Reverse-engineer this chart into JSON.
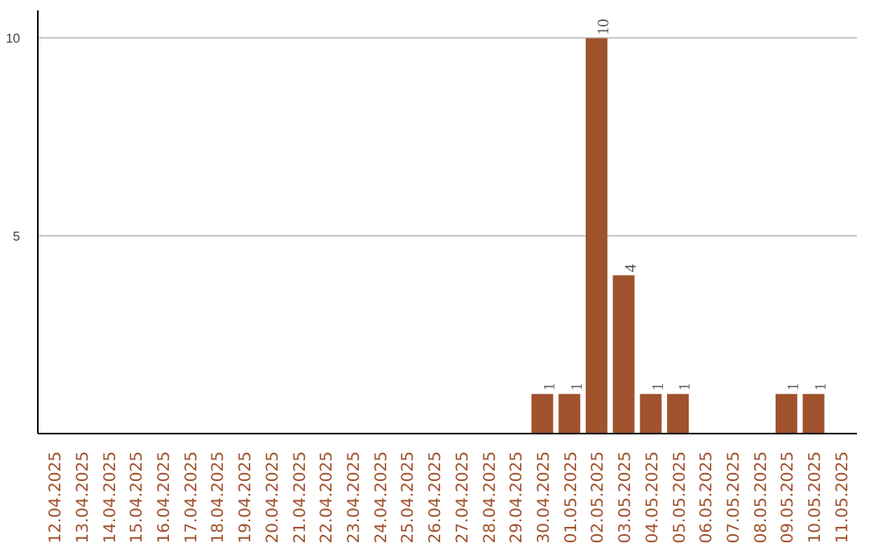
{
  "chart_data": {
    "type": "bar",
    "categories": [
      "12.04.2025",
      "13.04.2025",
      "14.04.2025",
      "15.04.2025",
      "16.04.2025",
      "17.04.2025",
      "18.04.2025",
      "19.04.2025",
      "20.04.2025",
      "21.04.2025",
      "22.04.2025",
      "23.04.2025",
      "24.04.2025",
      "25.04.2025",
      "26.04.2025",
      "27.04.2025",
      "28.04.2025",
      "29.04.2025",
      "30.04.2025",
      "01.05.2025",
      "02.05.2025",
      "03.05.2025",
      "04.05.2025",
      "05.05.2025",
      "06.05.2025",
      "07.05.2025",
      "08.05.2025",
      "09.05.2025",
      "10.05.2025",
      "11.05.2025"
    ],
    "values": [
      0,
      0,
      0,
      0,
      0,
      0,
      0,
      0,
      0,
      0,
      0,
      0,
      0,
      0,
      0,
      0,
      0,
      0,
      1,
      1,
      10,
      4,
      1,
      1,
      0,
      0,
      0,
      1,
      1,
      0
    ],
    "value_labels": [
      null,
      null,
      null,
      null,
      null,
      null,
      null,
      null,
      null,
      null,
      null,
      null,
      null,
      null,
      null,
      null,
      null,
      null,
      "1",
      "1",
      "10",
      "4",
      "1",
      "1",
      null,
      null,
      null,
      "1",
      "1",
      null
    ],
    "color": "#a0522d",
    "ylim": [
      0,
      10.7
    ],
    "yticks": [
      5,
      10
    ],
    "grid": "y"
  }
}
